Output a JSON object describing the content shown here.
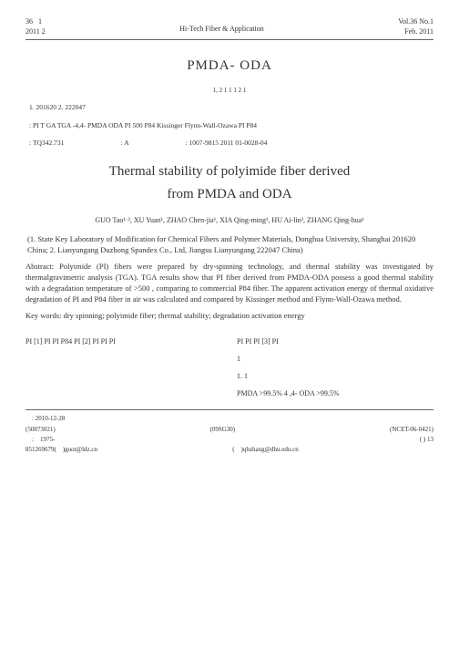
{
  "header": {
    "vol_cn_line1": "36",
    "vol_cn_num": "1",
    "vol_cn_line2": "2011   2",
    "journal": "Hi-Tech Fiber & Application",
    "vol_en_line1": "Vol.36 No.1",
    "vol_en_line2": "Feb. 2011"
  },
  "title_cn": "PMDA- ODA",
  "authors_cn": "1, 2          1          1          1          2          1",
  "affil_cn": "1.                                                                                    201620   2.                        222047",
  "abs_cn": "           :                               PI                            T GA                                    TGA                  -4,4-                    PMDA  ODA       PI      500                                                          P84  Kissinger   Flynn-Wall-Ozawa                       PI    P84",
  "kw_cn": "",
  "class": {
    "clc": "TQ342.731",
    "doc_code": "A",
    "article_id": "1007-9815   2011   01-0028-04"
  },
  "title_en_1": "Thermal stability of polyimide fiber derived",
  "title_en_2": "from PMDA and ODA",
  "authors_en": "GUO Tao¹·²,  XU Yuan¹,  ZHAO Chen-jia¹,  XIA Qing-ming¹,  HU Ai-lin²,  ZHANG Qing-hua¹",
  "affil_en": "(1. State Key Laboratory of Modification for Chemical Fibers and Polymer Materials,  Donghua University, Shanghai  201620  China;  2. Lianyungang Duzhong Spandex Co., Ltd,  Jiangsu Lianyungang  222047  China)",
  "abs_en_label": "Abstract:",
  "abs_en": " Polyimide (PI) fibers were prepared by dry-spinning technology, and thermal stability was investigated by thermalgravimetric analysis (TGA). TGA results show that PI fiber derived from PMDA-ODA possess a good thermal stability with a degradation temperature of >500   , comparing to commercial P84 fiber. The apparent activation energy of thermal oxidative degradation of PI and P84 fiber in air was calculated and compared by Kissinger method and Flynn-Wall-Ozawa method.",
  "kw_en_label": "Key words:",
  "kw_en": " dry spinning;   polyimide fiber;   thermal stability;   degradation activation energy",
  "col_left": "        PI                                                                                                [1]   PI                                                                           PI                                      P84   PI                                          [2]                PI                                                                    PI                    PI",
  "col_right_p1": "                                   PI                                                                                PI                                          PI                     [3]                               PI",
  "sec1": "1",
  "sec11": "1. 1",
  "col_right_p2": "                                      PMDA         >99.5%                                                       4 ,4-                    ODA         >99.5%",
  "footer": {
    "date_label": ":",
    "date": "2010-12-28",
    "fund1": "(50873021)",
    "fund2": "(09SG30)",
    "fund3": "(NCET-06-0421)",
    "bio_label": ":",
    "bio_year": "1975-",
    "bio_tail": "(     ) 13",
    "phone": "851269679(",
    "email1_label": ")guot@ldz.cn",
    "corr_label": "(",
    "email2": ")qhzhang@dhu.edu.cn"
  }
}
